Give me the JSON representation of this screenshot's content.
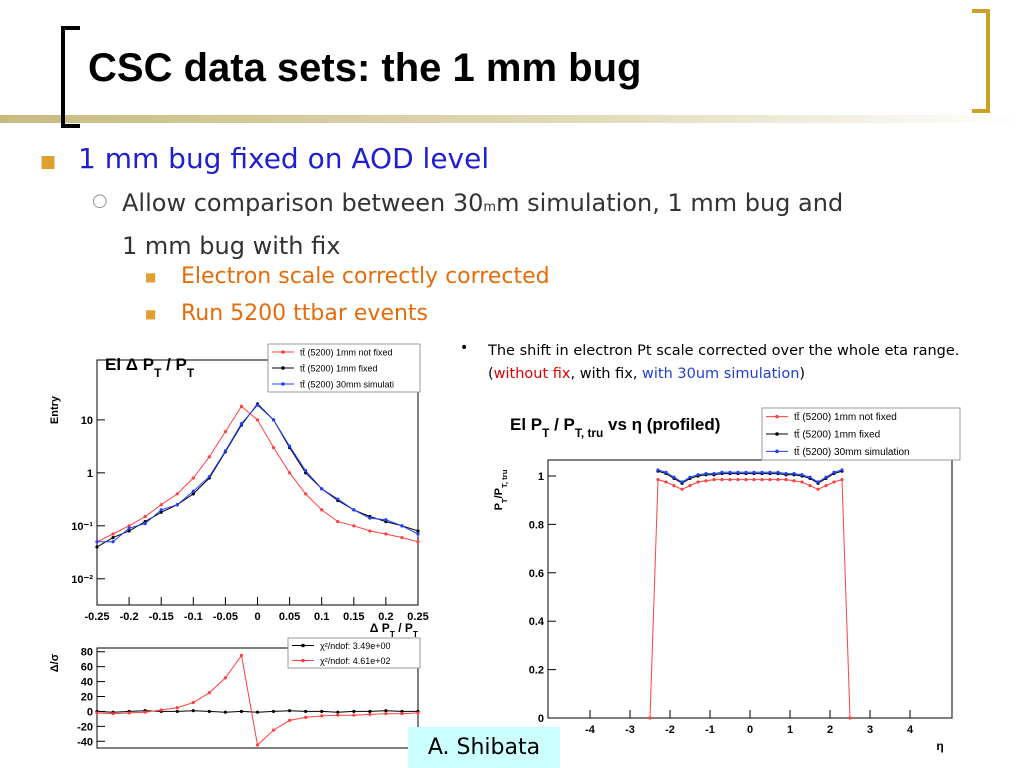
{
  "slide": {
    "title": "CSC data sets: the 1 mm bug",
    "bullet": "1 mm bug fixed on AOD level",
    "sub_bullet": [
      "Allow comparison between 30",
      "m",
      "m simulation, 1 mm bug and",
      "1 mm bug with fix"
    ],
    "sub_sub_bullets": [
      "Electron scale correctly corrected",
      "Run 5200 ttbar events"
    ],
    "note": {
      "line1": "The shift in electron Pt scale corrected over the whole eta range.",
      "line2": [
        "(",
        "without fix",
        ", with fix, ",
        "with 30um simulation",
        ")"
      ]
    },
    "footer": "A. Shibata"
  },
  "chart_data": [
    {
      "type": "line",
      "title": [
        {
          "text": "El Δ P"
        },
        {
          "text": "T",
          "sub": true
        },
        {
          "text": " / P"
        },
        {
          "text": "T",
          "sub": true
        }
      ],
      "xlabel": [
        {
          "text": "Δ P"
        },
        {
          "text": "T",
          "sub": true
        },
        {
          "text": " / P"
        },
        {
          "text": "T",
          "sub": true
        }
      ],
      "ylabel": "Entry",
      "log_y": true,
      "xlim": [
        -0.25,
        0.25
      ],
      "ylim": [
        0.0032,
        135
      ],
      "xticks": [
        -0.25,
        -0.2,
        -0.15,
        -0.1,
        -0.05,
        0,
        0.05,
        0.1,
        0.15,
        0.2,
        0.25
      ],
      "yticks": [
        {
          "value": 0.01,
          "label": "10⁻²"
        },
        {
          "value": 0.1,
          "label": "10⁻¹"
        },
        1,
        10
      ],
      "x": [
        -0.25,
        -0.225,
        -0.2,
        -0.175,
        -0.15,
        -0.125,
        -0.1,
        -0.075,
        -0.05,
        -0.025,
        0,
        0.025,
        0.05,
        0.075,
        0.1,
        0.125,
        0.15,
        0.175,
        0.2,
        0.225,
        0.25
      ],
      "series": [
        {
          "name": "tt̄ (5200) 1mm not fixed",
          "color": "#ff4040",
          "values": [
            0.05,
            0.07,
            0.1,
            0.15,
            0.25,
            0.4,
            0.8,
            2,
            6,
            18,
            10,
            3,
            1,
            0.4,
            0.2,
            0.12,
            0.1,
            0.08,
            0.07,
            0.06,
            0.05
          ]
        },
        {
          "name": "tt̄ (5200) 1mm fixed",
          "color": "#000000",
          "values": [
            0.04,
            0.06,
            0.08,
            0.12,
            0.18,
            0.25,
            0.4,
            0.8,
            2.5,
            8,
            20,
            10,
            3,
            1,
            0.5,
            0.3,
            0.2,
            0.15,
            0.12,
            0.1,
            0.08
          ]
        },
        {
          "name": "tt̄ (5200) 30mm simulati",
          "color": "#2040ff",
          "values": [
            0.05,
            0.05,
            0.09,
            0.11,
            0.2,
            0.25,
            0.45,
            0.85,
            2.6,
            8.5,
            19,
            10,
            3.2,
            1.1,
            0.5,
            0.32,
            0.2,
            0.14,
            0.13,
            0.1,
            0.07
          ]
        }
      ]
    },
    {
      "type": "line",
      "ylabel": "Δ/σ",
      "xlim": [
        -0.25,
        0.25
      ],
      "ylim": [
        -49,
        85
      ],
      "yticks": [
        -40,
        -20,
        0,
        20,
        40,
        60,
        80
      ],
      "x": [
        -0.25,
        -0.225,
        -0.2,
        -0.175,
        -0.15,
        -0.125,
        -0.1,
        -0.075,
        -0.05,
        -0.025,
        0,
        0.025,
        0.05,
        0.075,
        0.1,
        0.125,
        0.15,
        0.175,
        0.2,
        0.225,
        0.25
      ],
      "series": [
        {
          "name": "χ²/ndof: 3.49e+00",
          "color": "#000000",
          "values": [
            0,
            -1,
            0,
            1,
            0,
            0,
            1,
            0,
            -1,
            0,
            -1,
            0,
            1,
            0,
            0,
            -1,
            0,
            0,
            1,
            0,
            0
          ]
        },
        {
          "name": "χ²/ndof: 4.61e+02",
          "color": "#ff4040",
          "values": [
            -2,
            -3,
            -2,
            -1,
            2,
            5,
            12,
            25,
            45,
            75,
            -45,
            -25,
            -12,
            -8,
            -6,
            -5,
            -5,
            -4,
            -3,
            -3,
            -2
          ]
        }
      ]
    },
    {
      "type": "line",
      "title": [
        {
          "text": "El P"
        },
        {
          "text": "T",
          "sub": true
        },
        {
          "text": " / P"
        },
        {
          "text": "T, tru",
          "sub": true
        },
        {
          "text": " vs η (profiled)"
        }
      ],
      "xlabel": "η",
      "ylabel": [
        {
          "text": "P"
        },
        {
          "text": "T",
          "sub": true
        },
        {
          "text": "/P"
        },
        {
          "text": "T, tru",
          "sub": true
        }
      ],
      "xlim": [
        -5.05,
        5.05
      ],
      "ylim": [
        0,
        1.066
      ],
      "xticks": [
        -4,
        -3,
        -2,
        -1,
        0,
        1,
        2,
        3,
        4
      ],
      "yticks": [
        0,
        0.2,
        0.4,
        0.6,
        0.8,
        1
      ],
      "x": [
        -2.5,
        -2.3,
        -2.1,
        -1.9,
        -1.7,
        -1.5,
        -1.3,
        -1.1,
        -0.9,
        -0.7,
        -0.5,
        -0.3,
        -0.1,
        0.1,
        0.3,
        0.5,
        0.7,
        0.9,
        1.1,
        1.3,
        1.5,
        1.7,
        1.9,
        2.1,
        2.3,
        2.5
      ],
      "series": [
        {
          "name": "tt̄ (5200) 1mm not fixed",
          "color": "#ff4040",
          "values": [
            0,
            0.985,
            0.975,
            0.96,
            0.945,
            0.96,
            0.975,
            0.98,
            0.985,
            0.985,
            0.985,
            0.985,
            0.985,
            0.985,
            0.985,
            0.985,
            0.985,
            0.985,
            0.98,
            0.975,
            0.96,
            0.945,
            0.96,
            0.975,
            0.985,
            0
          ]
        },
        {
          "name": "tt̄ (5200) 1mm fixed",
          "color": "#000000",
          "values": [
            null,
            1.02,
            1.01,
            0.99,
            0.97,
            0.99,
            1.0,
            1.005,
            1.005,
            1.01,
            1.01,
            1.01,
            1.01,
            1.01,
            1.01,
            1.01,
            1.01,
            1.005,
            1.005,
            1.0,
            0.99,
            0.97,
            0.99,
            1.01,
            1.02,
            null
          ]
        },
        {
          "name": "tt̄ (5200) 30mm simulation",
          "color": "#2040ff",
          "values": [
            null,
            1.025,
            1.015,
            0.995,
            0.975,
            0.995,
            1.005,
            1.01,
            1.01,
            1.015,
            1.015,
            1.015,
            1.015,
            1.015,
            1.015,
            1.015,
            1.015,
            1.01,
            1.01,
            1.005,
            0.995,
            0.975,
            0.995,
            1.015,
            1.025,
            null
          ]
        }
      ]
    }
  ]
}
